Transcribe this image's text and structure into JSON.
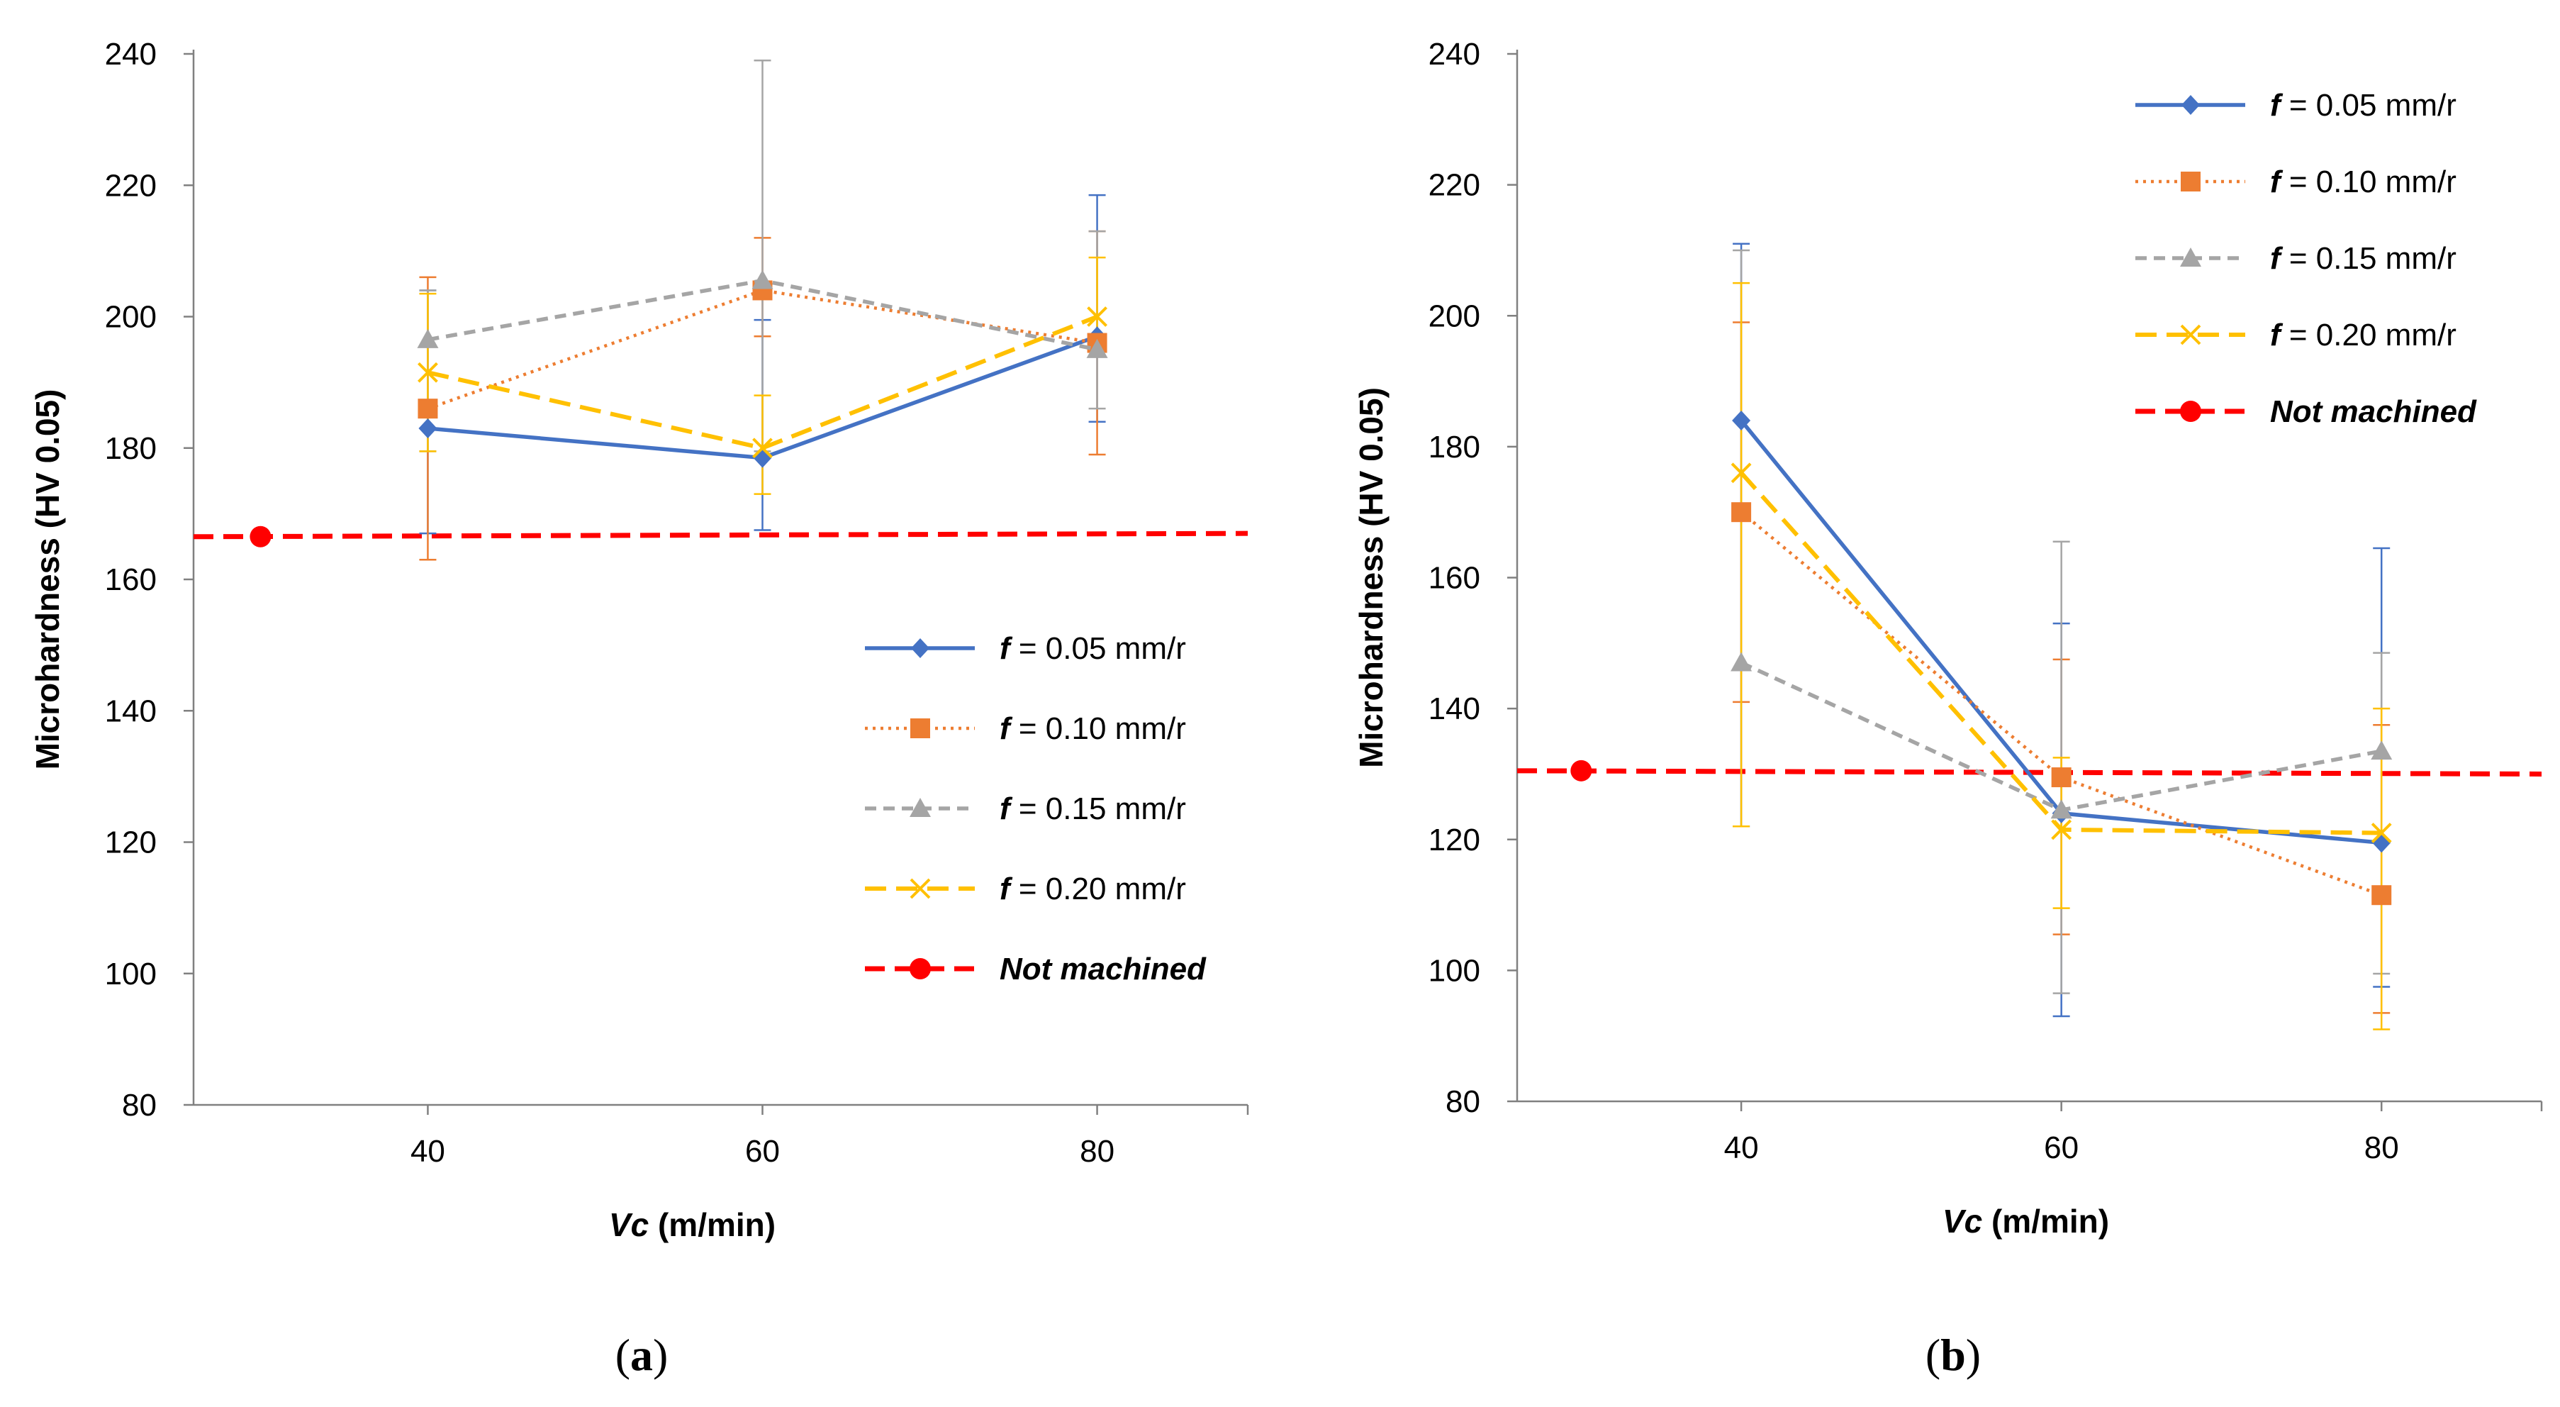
{
  "chart_data": [
    {
      "panel_label": "(a)",
      "panel_label_parts": [
        "(",
        "a",
        ")"
      ],
      "type": "line",
      "xlabel": "Vc (m/min)",
      "xlabel_parts": [
        "Vc",
        " (m/min)"
      ],
      "ylabel": "Microhardness  (HV 0.05)",
      "ylim": [
        80,
        240
      ],
      "xlim": [
        26,
        89
      ],
      "yticks": [
        80,
        100,
        120,
        140,
        160,
        180,
        200,
        220,
        240
      ],
      "xticks": [
        40,
        60,
        80
      ],
      "legend_position": "lower-right",
      "series": [
        {
          "name": "f = 0.05 mm/r",
          "name_parts": [
            "f",
            " = 0.05 mm/r"
          ],
          "color": "#4472C4",
          "dash": "solid",
          "marker": "diamond",
          "x": [
            40,
            60,
            80
          ],
          "y": [
            183,
            178.5,
            197
          ],
          "err_low": [
            16,
            11,
            13
          ],
          "err_high": [
            21,
            21,
            21.5
          ]
        },
        {
          "name": "f = 0.10 mm/r",
          "name_parts": [
            "f",
            " = 0.10 mm/r"
          ],
          "color": "#ED7D31",
          "dash": "dot",
          "marker": "square",
          "x": [
            40,
            60,
            80
          ],
          "y": [
            186,
            204,
            196
          ],
          "err_low": [
            23,
            7,
            17
          ],
          "err_high": [
            20,
            8,
            17
          ]
        },
        {
          "name": "f = 0.15 mm/r",
          "name_parts": [
            "f",
            " = 0.15 mm/r"
          ],
          "color": "#A5A5A5",
          "dash": "dash",
          "marker": "triangle",
          "x": [
            40,
            60,
            80
          ],
          "y": [
            196.5,
            205.5,
            195
          ],
          "err_low": [
            17,
            26,
            9
          ],
          "err_high": [
            7.5,
            33.5,
            18
          ]
        },
        {
          "name": "f = 0.20 mm/r",
          "name_parts": [
            "f",
            " = 0.20 mm/r"
          ],
          "color": "#FFC000",
          "dash": "longdash",
          "marker": "x",
          "x": [
            40,
            60,
            80
          ],
          "y": [
            191.5,
            180,
            200
          ],
          "err_low": [
            12,
            7,
            6
          ],
          "err_high": [
            12,
            8,
            9
          ]
        }
      ],
      "reference": {
        "name": "Not machined",
        "color": "#FF0000",
        "marker": "circle",
        "x_point": 30,
        "value": 166.5,
        "value_end": 167
      }
    },
    {
      "panel_label": "(b)",
      "panel_label_parts": [
        "(",
        "b",
        ")"
      ],
      "type": "line",
      "xlabel": "Vc (m/min)",
      "xlabel_parts": [
        "Vc",
        " (m/min)"
      ],
      "ylabel": "Microhardness  (HV 0.05)",
      "ylim": [
        80,
        240
      ],
      "xlim": [
        26,
        90
      ],
      "yticks": [
        80,
        100,
        120,
        140,
        160,
        180,
        200,
        220,
        240
      ],
      "xticks": [
        40,
        60,
        80
      ],
      "legend_position": "top-right",
      "series": [
        {
          "name": "f = 0.05 mm/r",
          "name_parts": [
            "f",
            " = 0.05 mm/r"
          ],
          "color": "#4472C4",
          "dash": "solid",
          "marker": "diamond",
          "x": [
            40,
            60,
            80
          ],
          "y": [
            184,
            124,
            119.5
          ],
          "err_low": [
            62,
            31,
            22
          ],
          "err_high": [
            27,
            29,
            45
          ]
        },
        {
          "name": "f = 0.10 mm/r",
          "name_parts": [
            "f",
            " = 0.10 mm/r"
          ],
          "color": "#ED7D31",
          "dash": "dot",
          "marker": "square",
          "x": [
            40,
            60,
            80
          ],
          "y": [
            170,
            129.5,
            111.5
          ],
          "err_low": [
            29,
            24,
            18
          ],
          "err_high": [
            29,
            18,
            26
          ]
        },
        {
          "name": "f = 0.15 mm/r",
          "name_parts": [
            "f",
            " = 0.15 mm/r"
          ],
          "color": "#A5A5A5",
          "dash": "dash",
          "marker": "triangle",
          "x": [
            40,
            60,
            80
          ],
          "y": [
            147,
            124.5,
            133.5
          ],
          "err_low": [
            25,
            28,
            34
          ],
          "err_high": [
            63,
            41,
            15
          ]
        },
        {
          "name": "f = 0.20 mm/r",
          "name_parts": [
            "f",
            " = 0.20 mm/r"
          ],
          "color": "#FFC000",
          "dash": "longdash",
          "marker": "x",
          "x": [
            40,
            60,
            80
          ],
          "y": [
            176,
            121.5,
            121
          ],
          "err_low": [
            54,
            12,
            30
          ],
          "err_high": [
            29,
            11,
            19
          ]
        }
      ],
      "reference": {
        "name": "Not machined",
        "color": "#FF0000",
        "marker": "circle",
        "x_point": 30,
        "value": 130.5,
        "value_end": 130
      }
    }
  ]
}
